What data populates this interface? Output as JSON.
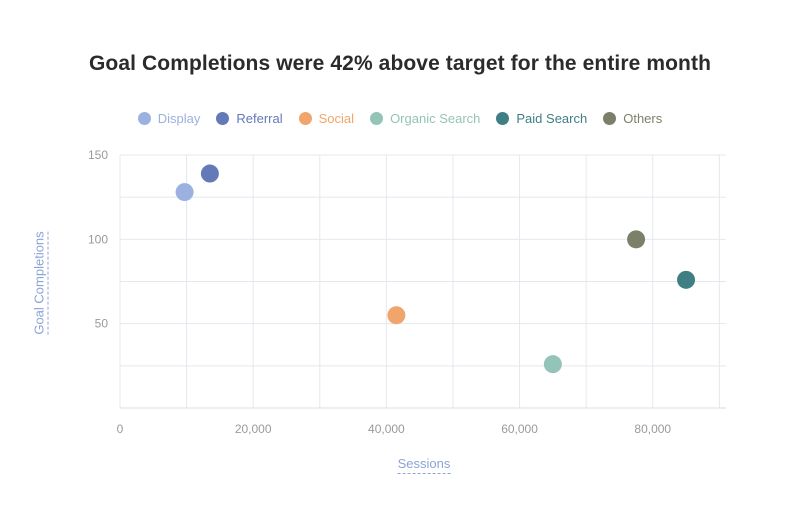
{
  "chart_data": {
    "type": "scatter",
    "title": "Goal Completions were 42% above target for the entire month",
    "xlabel": "Sessions",
    "ylabel": "Goal Completions",
    "xlim": [
      0,
      91000
    ],
    "ylim": [
      0,
      150
    ],
    "x_ticks": [
      "0",
      "20,000",
      "40,000",
      "60,000",
      "80,000"
    ],
    "x_tick_values": [
      0,
      20000,
      40000,
      60000,
      80000
    ],
    "y_ticks": [
      "50",
      "100",
      "150"
    ],
    "y_tick_values": [
      50,
      100,
      150
    ],
    "grid": true,
    "legend_position": "top",
    "series": [
      {
        "name": "Display",
        "color": "#9bb1e0",
        "x": 9700,
        "y": 128
      },
      {
        "name": "Referral",
        "color": "#6479b8",
        "x": 13500,
        "y": 139
      },
      {
        "name": "Social",
        "color": "#f0a56c",
        "x": 41500,
        "y": 55
      },
      {
        "name": "Organic Search",
        "color": "#94c4b7",
        "x": 65000,
        "y": 26
      },
      {
        "name": "Paid Search",
        "color": "#3f7f84",
        "x": 85000,
        "y": 76
      },
      {
        "name": "Others",
        "color": "#7b8168",
        "x": 77500,
        "y": 100
      }
    ]
  }
}
